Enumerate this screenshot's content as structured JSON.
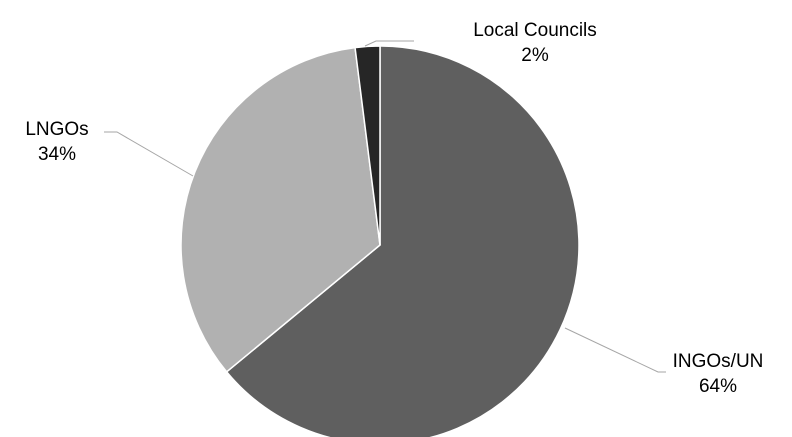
{
  "chart_data": {
    "type": "pie",
    "title": "",
    "categories": [
      "INGOs/UN",
      "LNGOs",
      "Local Councils"
    ],
    "values": [
      64,
      34,
      2
    ],
    "value_labels": [
      "64%",
      "34%",
      "2%"
    ],
    "colors": [
      "#5f5f5f",
      "#b1b1b1",
      "#262626"
    ],
    "start_angle_deg": 0,
    "direction": "clockwise",
    "legend": "none",
    "data_labels": "outside with leader lines"
  }
}
